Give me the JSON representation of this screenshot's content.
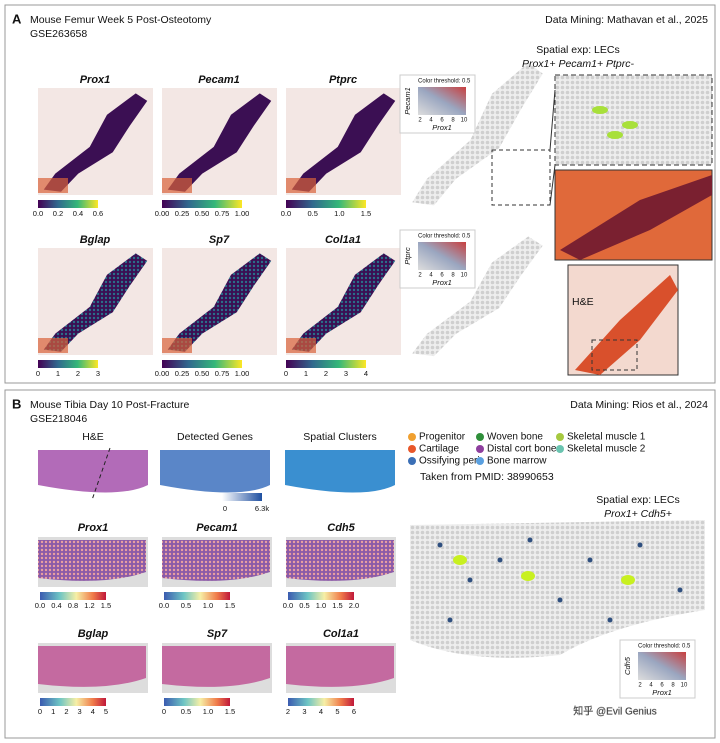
{
  "panels": [
    {
      "letter": "A",
      "title": "Mouse Femur Week 5 Post-Osteotomy",
      "accession": "GSE263658",
      "source": "Data Mining: Mathavan et al., 2025",
      "maps": [
        {
          "gene": "Prox1",
          "ticks": [
            "0.0",
            "0.2",
            "0.4",
            "0.6"
          ]
        },
        {
          "gene": "Pecam1",
          "ticks": [
            "0.00",
            "0.25",
            "0.50",
            "0.75",
            "1.00"
          ]
        },
        {
          "gene": "Ptprc",
          "ticks": [
            "0.0",
            "0.5",
            "1.0",
            "1.5"
          ]
        },
        {
          "gene": "Bglap",
          "ticks": [
            "0",
            "1",
            "2",
            "3"
          ]
        },
        {
          "gene": "Sp7",
          "ticks": [
            "0.00",
            "0.25",
            "0.50",
            "0.75",
            "1.00"
          ]
        },
        {
          "gene": "Col1a1",
          "ticks": [
            "0",
            "1",
            "2",
            "3",
            "4"
          ]
        }
      ],
      "spatial_title": "Spatial exp: LECs",
      "spatial_subtitle": "Prox1+ Pecam1+ Ptprc-",
      "legends": [
        {
          "title": "Color threshold: 0.5",
          "y_label": "Pecam1",
          "x_label": "Prox1",
          "ticks": [
            "2",
            "4",
            "6",
            "8",
            "10"
          ]
        },
        {
          "title": "Color threshold: 0.5",
          "y_label": "Ptprc",
          "x_label": "Prox1",
          "ticks": [
            "2",
            "4",
            "6",
            "8",
            "10"
          ]
        }
      ],
      "he_label": "H&E"
    },
    {
      "letter": "B",
      "title": "Mouse Tibia Day 10 Post-Fracture",
      "accession": "GSE218046",
      "source": "Data Mining: Rios et al., 2024",
      "overview": [
        "H&E",
        "Detected Genes",
        "Spatial Clusters"
      ],
      "detected_ticks": [
        "0",
        "6.3k"
      ],
      "clusters": [
        {
          "name": "Progenitor",
          "color": "#f0a030"
        },
        {
          "name": "Cartilage",
          "color": "#e8572a"
        },
        {
          "name": "Ossifying peri",
          "color": "#3b6fb6"
        },
        {
          "name": "Woven bone",
          "color": "#2f8f3a"
        },
        {
          "name": "Distal cort bone",
          "color": "#8e3f9e"
        },
        {
          "name": "Bone marrow",
          "color": "#5aa0e0"
        },
        {
          "name": "Skeletal muscle 1",
          "color": "#a6c940"
        },
        {
          "name": "Skeletal muscle 2",
          "color": "#6ac4b0"
        }
      ],
      "pmid": "Taken from PMID: 38990653",
      "maps": [
        {
          "gene": "Prox1",
          "ticks": [
            "0.0",
            "0.4",
            "0.8",
            "1.2",
            "1.5"
          ]
        },
        {
          "gene": "Pecam1",
          "ticks": [
            "0.0",
            "0.5",
            "1.0",
            "1.5"
          ]
        },
        {
          "gene": "Cdh5",
          "ticks": [
            "0.0",
            "0.5",
            "1.0",
            "1.5",
            "2.0"
          ]
        },
        {
          "gene": "Bglap",
          "ticks": [
            "0",
            "1",
            "2",
            "3",
            "4",
            "5"
          ]
        },
        {
          "gene": "Sp7",
          "ticks": [
            "0",
            "0.5",
            "1.0",
            "1.5"
          ]
        },
        {
          "gene": "Col1a1",
          "ticks": [
            "2",
            "3",
            "4",
            "5",
            "6"
          ]
        }
      ],
      "spatial_title": "Spatial exp: LECs",
      "spatial_subtitle": "Prox1+ Cdh5+",
      "legends": [
        {
          "title": "Color threshold: 0.5",
          "y_label": "Cdh5",
          "x_label": "Prox1",
          "ticks": [
            "2",
            "4",
            "6",
            "8",
            "10"
          ]
        }
      ]
    }
  ],
  "watermark": "知乎 @Evil Genius"
}
